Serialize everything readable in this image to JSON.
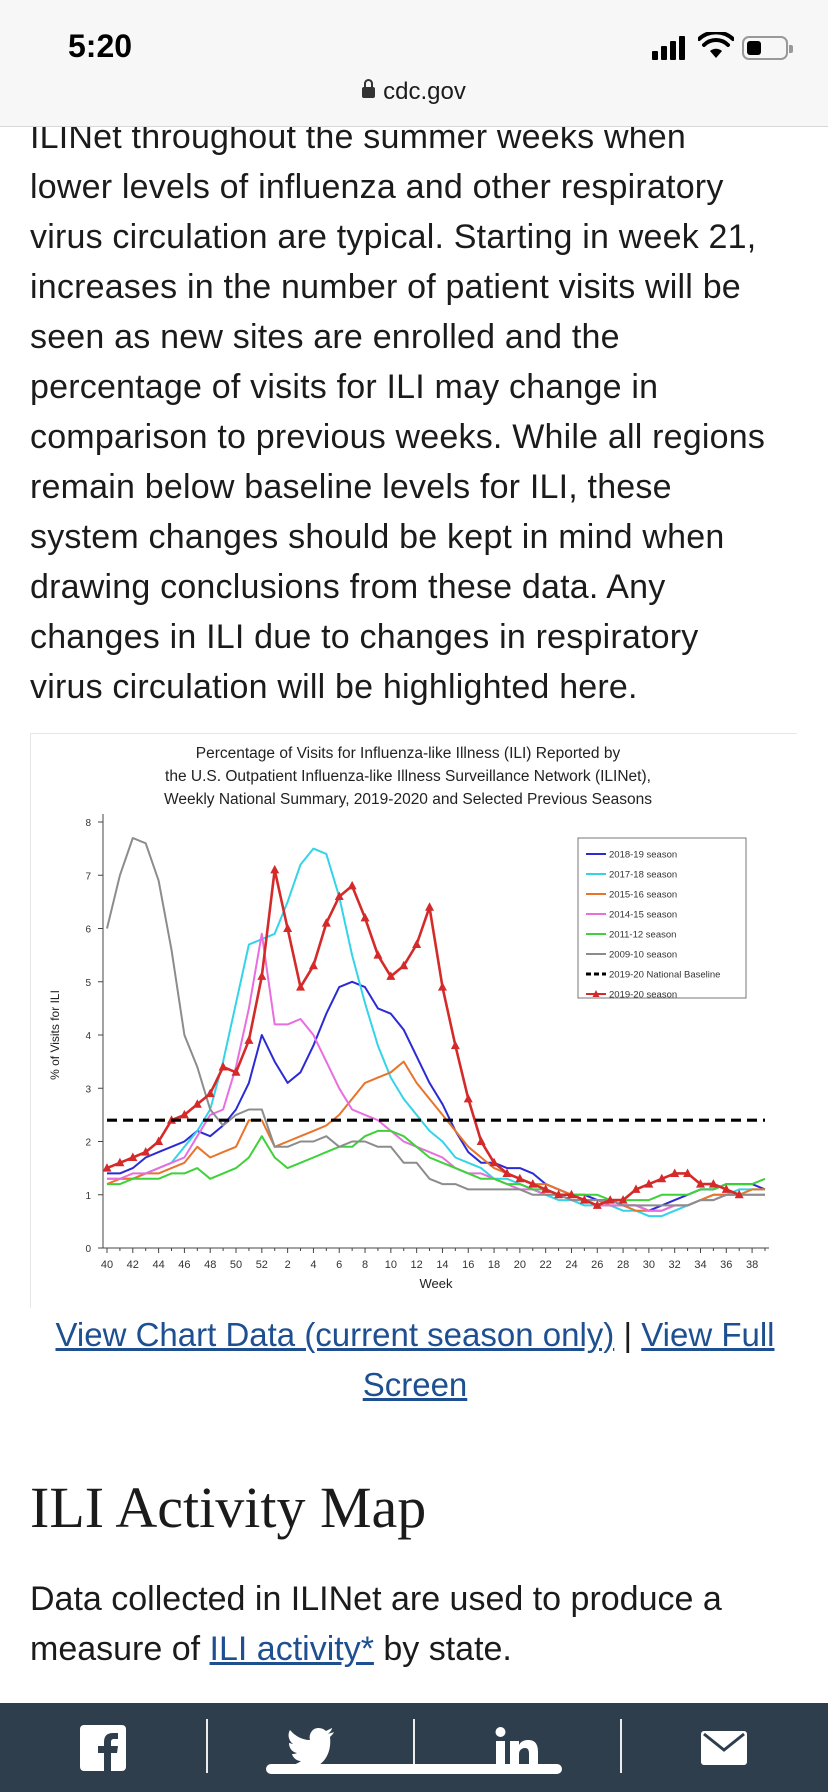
{
  "status_bar": {
    "time": "5:20"
  },
  "url_bar": {
    "domain": "cdc.gov"
  },
  "paragraph_lines": [
    "ILINet throughout the summer weeks when",
    "lower levels of influenza and other respiratory",
    "virus circulation are typical. Starting in week 21,",
    "increases in the number of patient visits will be",
    "seen as new sites are enrolled and the",
    "percentage of visits for ILI may change in",
    "comparison to previous weeks. While all regions",
    "remain below baseline levels for ILI, these",
    "system changes should be kept in mind when",
    "drawing conclusions from these data. Any",
    "changes in ILI due to changes in respiratory",
    "virus circulation will be highlighted here."
  ],
  "chart_data": {
    "type": "line",
    "title_lines": [
      "Percentage of Visits for Influenza-like Illness (ILI) Reported by",
      "the U.S. Outpatient Influenza-like Illness Surveillance Network (ILINet),",
      "Weekly National Summary, 2019-2020 and Selected Previous Seasons"
    ],
    "xlabel": "Week",
    "ylabel": "% of Visits for ILI",
    "ylim": [
      0,
      8
    ],
    "yticks": [
      "0",
      "1",
      "2",
      "3",
      "4",
      "5",
      "6",
      "7",
      "8"
    ],
    "xticks": [
      "40",
      "42",
      "44",
      "46",
      "48",
      "50",
      "52",
      "2",
      "4",
      "6",
      "8",
      "10",
      "12",
      "14",
      "16",
      "18",
      "20",
      "22",
      "24",
      "26",
      "28",
      "30",
      "32",
      "34",
      "36",
      "38"
    ],
    "legend_position": "top-right",
    "baseline": {
      "name": "2019-20 National Baseline",
      "value": 2.4,
      "color": "#000000"
    },
    "series": [
      {
        "name": "2018-19 season",
        "color": "#2b2bd6",
        "values": [
          1.4,
          1.4,
          1.5,
          1.7,
          1.8,
          1.9,
          2.0,
          2.2,
          2.1,
          2.3,
          2.6,
          3.1,
          4.0,
          3.5,
          3.1,
          3.3,
          3.8,
          4.4,
          4.9,
          5.0,
          4.9,
          4.5,
          4.4,
          4.1,
          3.6,
          3.1,
          2.7,
          2.2,
          1.8,
          1.6,
          1.6,
          1.5,
          1.5,
          1.4,
          1.2,
          1.1,
          1.0,
          1.0,
          0.9,
          0.9,
          0.8,
          0.8,
          0.7,
          0.8,
          0.9,
          1.0,
          1.1,
          1.1,
          1.2,
          1.2,
          1.2,
          1.1
        ]
      },
      {
        "name": "2017-18 season",
        "color": "#34d4e8",
        "values": [
          1.3,
          1.3,
          1.3,
          1.4,
          1.5,
          1.6,
          1.9,
          2.2,
          2.6,
          3.5,
          4.6,
          5.7,
          5.8,
          5.9,
          6.5,
          7.2,
          7.5,
          7.4,
          6.6,
          5.5,
          4.6,
          3.8,
          3.2,
          2.8,
          2.5,
          2.2,
          2.0,
          1.7,
          1.6,
          1.5,
          1.3,
          1.3,
          1.2,
          1.1,
          1.0,
          0.9,
          0.9,
          0.8,
          0.8,
          0.8,
          0.7,
          0.7,
          0.6,
          0.6,
          0.7,
          0.8,
          0.9,
          1.0,
          1.0,
          1.1,
          1.1,
          1.1
        ]
      },
      {
        "name": "2015-16 season",
        "color": "#e8742c",
        "values": [
          1.2,
          1.3,
          1.3,
          1.4,
          1.4,
          1.5,
          1.6,
          1.9,
          1.7,
          1.8,
          1.9,
          2.4,
          2.4,
          1.9,
          2.0,
          2.1,
          2.2,
          2.3,
          2.5,
          2.8,
          3.1,
          3.2,
          3.3,
          3.5,
          3.1,
          2.8,
          2.5,
          2.2,
          1.9,
          1.7,
          1.5,
          1.4,
          1.3,
          1.2,
          1.2,
          1.1,
          1.0,
          0.9,
          0.9,
          0.8,
          0.8,
          0.7,
          0.7,
          0.7,
          0.8,
          0.8,
          0.9,
          1.0,
          1.0,
          1.0,
          1.1,
          1.1
        ]
      },
      {
        "name": "2014-15 season",
        "color": "#e86ee0",
        "values": [
          1.3,
          1.3,
          1.4,
          1.4,
          1.5,
          1.6,
          1.7,
          2.1,
          2.5,
          2.6,
          3.4,
          4.5,
          5.9,
          4.2,
          4.2,
          4.3,
          4.0,
          3.5,
          3.0,
          2.6,
          2.5,
          2.4,
          2.2,
          2.0,
          1.9,
          1.8,
          1.7,
          1.5,
          1.4,
          1.4,
          1.3,
          1.2,
          1.1,
          1.1,
          1.0,
          1.0,
          0.9,
          0.9,
          0.8,
          0.8,
          0.8,
          0.8,
          0.7,
          0.7,
          0.8,
          0.8,
          0.9,
          0.9,
          1.0,
          1.0,
          1.0,
          1.0
        ]
      },
      {
        "name": "2011-12 season",
        "color": "#3fd13a",
        "values": [
          1.2,
          1.2,
          1.3,
          1.3,
          1.3,
          1.4,
          1.4,
          1.5,
          1.3,
          1.4,
          1.5,
          1.7,
          2.1,
          1.7,
          1.5,
          1.6,
          1.7,
          1.8,
          1.9,
          1.9,
          2.1,
          2.2,
          2.2,
          2.1,
          1.9,
          1.7,
          1.6,
          1.5,
          1.4,
          1.3,
          1.3,
          1.2,
          1.2,
          1.1,
          1.1,
          1.0,
          1.0,
          1.0,
          1.0,
          0.9,
          0.9,
          0.9,
          0.9,
          1.0,
          1.0,
          1.0,
          1.1,
          1.1,
          1.2,
          1.2,
          1.2,
          1.3
        ]
      },
      {
        "name": "2009-10 season",
        "color": "#8c8c8c",
        "values": [
          6.0,
          7.0,
          7.7,
          7.6,
          6.9,
          5.6,
          4.0,
          3.4,
          2.6,
          2.3,
          2.5,
          2.6,
          2.6,
          1.9,
          1.9,
          2.0,
          2.0,
          2.1,
          1.9,
          2.0,
          2.0,
          1.9,
          1.9,
          1.6,
          1.6,
          1.3,
          1.2,
          1.2,
          1.1,
          1.1,
          1.1,
          1.1,
          1.1,
          1.0,
          1.0,
          1.0,
          0.9,
          0.9,
          0.9,
          0.9,
          0.8,
          0.8,
          0.8,
          0.8,
          0.8,
          0.8,
          0.9,
          0.9,
          1.0,
          1.0,
          1.0,
          1.0
        ]
      },
      {
        "name": "2019-20 season",
        "color": "#d42a2a",
        "marker": "triangle",
        "values": [
          1.5,
          1.6,
          1.7,
          1.8,
          2.0,
          2.4,
          2.5,
          2.7,
          2.9,
          3.4,
          3.3,
          3.9,
          5.1,
          7.1,
          6.0,
          4.9,
          5.3,
          6.1,
          6.6,
          6.8,
          6.2,
          5.5,
          5.1,
          5.3,
          5.7,
          6.4,
          4.9,
          3.8,
          2.8,
          2.0,
          1.6,
          1.4,
          1.3,
          1.2,
          1.1,
          1.0,
          1.0,
          0.9,
          0.8,
          0.9,
          0.9,
          1.1,
          1.2,
          1.3,
          1.4,
          1.4,
          1.2,
          1.2,
          1.1,
          1.0
        ]
      }
    ]
  },
  "chart_links": {
    "data_link": "View Chart Data (current season only)",
    "separator": "|",
    "full_screen_link": "View Full Screen"
  },
  "map_section": {
    "heading": "ILI Activity Map",
    "desc_before": "Data collected in ILINet are used to produce a measure of ",
    "desc_link": "ILI activity*",
    "desc_after": " by state."
  },
  "share_bar": {
    "icons": [
      "facebook-icon",
      "twitter-icon",
      "linkedin-icon",
      "email-icon"
    ],
    "background": "#2f3e4d"
  }
}
